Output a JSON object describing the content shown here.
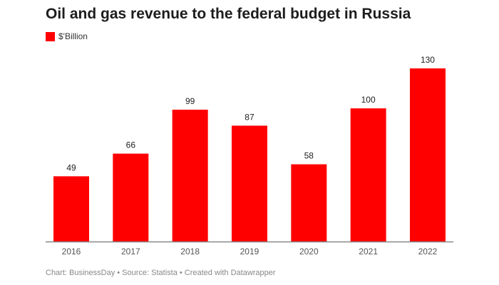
{
  "chart_data": {
    "type": "bar",
    "title": "Oil and gas revenue to the federal budget in Russia",
    "legend": [
      {
        "name": "$'Billion",
        "color": "#ff0000"
      }
    ],
    "legend_position": "top-left",
    "categories": [
      "2016",
      "2017",
      "2018",
      "2019",
      "2020",
      "2021",
      "2022"
    ],
    "series": [
      {
        "name": "$'Billion",
        "values": [
          49,
          66,
          99,
          87,
          58,
          100,
          130
        ]
      }
    ],
    "data_labels": true,
    "grid": false,
    "ylim": [
      0,
      130
    ],
    "xlabel": "",
    "ylabel": "",
    "bar_color": "#ff0000"
  },
  "footer": "Chart: BusinessDay • Source: Statista • Created with Datawrapper"
}
